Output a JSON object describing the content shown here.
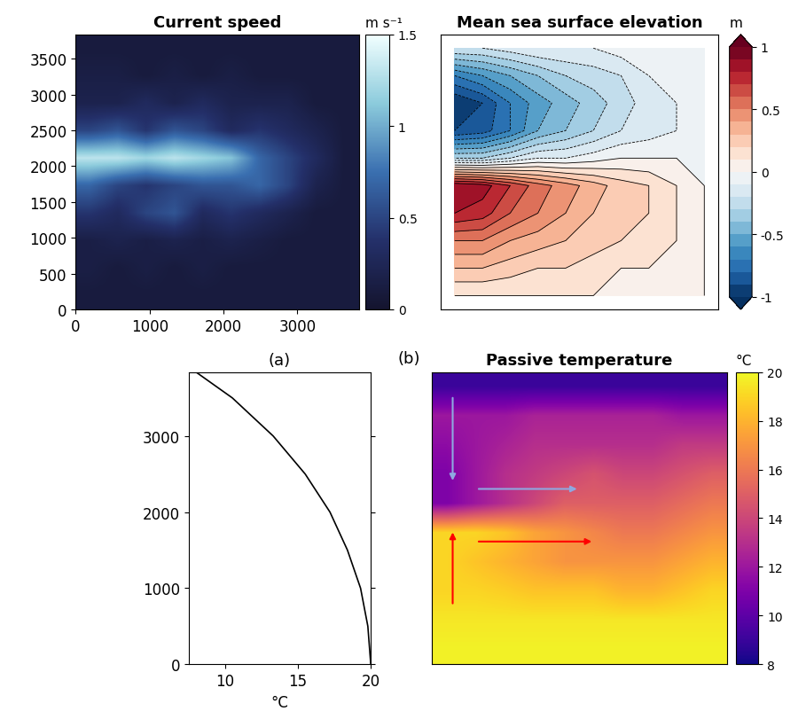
{
  "chart_data": [
    {
      "type": "heatmap",
      "title": "Current speed",
      "xlim": [
        0,
        3840
      ],
      "ylim": [
        0,
        3840
      ],
      "xticks": [
        0,
        1000,
        2000,
        3000
      ],
      "yticks": [
        0,
        500,
        1000,
        1500,
        2000,
        2500,
        3000,
        3500
      ],
      "colorbar_label": "m s⁻¹",
      "colorbar_range": [
        0,
        1.5
      ],
      "colorbar_ticks": [
        0,
        0.5,
        1,
        1.5
      ],
      "cells": [
        [
          0.1,
          0.1,
          0.1,
          0.1,
          0.1,
          0.1,
          0.1,
          0.1,
          0.1,
          0.1
        ],
        [
          0.15,
          0.1,
          0.15,
          0.1,
          0.15,
          0.1,
          0.1,
          0.1,
          0.1,
          0.1
        ],
        [
          0.15,
          0.2,
          0.15,
          0.2,
          0.15,
          0.2,
          0.15,
          0.1,
          0.1,
          0.1
        ],
        [
          0.4,
          0.3,
          0.5,
          0.6,
          0.3,
          0.4,
          0.3,
          0.2,
          0.1,
          0.1
        ],
        [
          0.7,
          0.5,
          0.4,
          0.5,
          0.6,
          0.6,
          0.7,
          0.5,
          0.2,
          0.1
        ],
        [
          1.3,
          1.3,
          1.2,
          1.3,
          1.2,
          1.1,
          0.7,
          0.5,
          0.3,
          0.1
        ],
        [
          0.5,
          0.6,
          0.4,
          0.6,
          0.5,
          0.3,
          0.4,
          0.3,
          0.2,
          0.1
        ],
        [
          0.2,
          0.2,
          0.3,
          0.2,
          0.3,
          0.2,
          0.2,
          0.2,
          0.1,
          0.1
        ],
        [
          0.15,
          0.15,
          0.1,
          0.15,
          0.1,
          0.15,
          0.1,
          0.1,
          0.1,
          0.1
        ],
        [
          0.1,
          0.1,
          0.1,
          0.1,
          0.1,
          0.1,
          0.1,
          0.1,
          0.1,
          0.1
        ]
      ]
    },
    {
      "type": "contour",
      "title": "Mean sea surface elevation",
      "xlim": [
        0,
        3840
      ],
      "ylim": [
        0,
        3840
      ],
      "tick_labels": false,
      "colorbar_label": "m",
      "colorbar_range": [
        -1,
        1
      ],
      "colorbar_ticks": [
        -1,
        -0.5,
        0,
        0.5,
        1
      ],
      "cells": [
        [
          0.1,
          0.1,
          0.1,
          0.1,
          0.1,
          0.1,
          0.1,
          0.05,
          0.05,
          0
        ],
        [
          0.3,
          0.3,
          0.25,
          0.2,
          0.2,
          0.15,
          0.1,
          0.1,
          0.05,
          0
        ],
        [
          0.5,
          0.5,
          0.4,
          0.35,
          0.3,
          0.25,
          0.2,
          0.15,
          0.1,
          0
        ],
        [
          0.8,
          0.75,
          0.6,
          0.5,
          0.4,
          0.3,
          0.25,
          0.2,
          0.1,
          0
        ],
        [
          0.9,
          0.85,
          0.7,
          0.55,
          0.45,
          0.35,
          0.25,
          0.2,
          0.1,
          0
        ],
        [
          -0.3,
          -0.3,
          -0.2,
          -0.1,
          -0.1,
          -0.05,
          0,
          0,
          0,
          0
        ],
        [
          -0.9,
          -0.85,
          -0.7,
          -0.5,
          -0.4,
          -0.3,
          -0.2,
          -0.15,
          -0.1,
          0
        ],
        [
          -1,
          -0.9,
          -0.7,
          -0.55,
          -0.45,
          -0.35,
          -0.25,
          -0.15,
          -0.1,
          0
        ],
        [
          -0.7,
          -0.6,
          -0.5,
          -0.4,
          -0.3,
          -0.25,
          -0.2,
          -0.1,
          -0.05,
          0
        ],
        [
          -0.2,
          -0.2,
          -0.15,
          -0.1,
          -0.1,
          -0.1,
          -0.05,
          -0.05,
          0,
          0
        ]
      ]
    },
    {
      "type": "line",
      "title": "(a)",
      "x_label": "°C",
      "x": [
        20,
        19.8,
        19.3,
        18.4,
        17.2,
        15.5,
        13.3,
        10.5,
        8
      ],
      "y": [
        0,
        500,
        1000,
        1500,
        2000,
        2500,
        3000,
        3500,
        3840
      ],
      "color": "#000000",
      "xlim": [
        7.5,
        20
      ],
      "ylim": [
        0,
        3840
      ],
      "xticks": [
        10,
        15,
        20
      ],
      "yticks": [
        0,
        1000,
        2000,
        3000
      ]
    },
    {
      "type": "heatmap",
      "title": "Passive temperature",
      "panel_label": "(b)",
      "xlim": [
        0,
        3840
      ],
      "ylim": [
        0,
        3840
      ],
      "tick_labels": false,
      "colorbar_label": "°C",
      "colorbar_range": [
        8,
        20
      ],
      "colorbar_ticks": [
        8,
        10,
        12,
        14,
        16,
        18,
        20
      ],
      "cells": [
        [
          19.8,
          19.8,
          19.8,
          19.8,
          19.8,
          19.8,
          19.8,
          19.8,
          19.8,
          19.8
        ],
        [
          19.5,
          19.5,
          19.5,
          19.5,
          19.5,
          19.5,
          19.5,
          19.5,
          19.5,
          19.5
        ],
        [
          19,
          19,
          18.8,
          18.5,
          18.5,
          18.5,
          18,
          18,
          18.5,
          19
        ],
        [
          19,
          18.5,
          18,
          17.5,
          17,
          17,
          17,
          17,
          17.5,
          18
        ],
        [
          19,
          19,
          18.5,
          17.5,
          17,
          16.5,
          16,
          16,
          16.5,
          17
        ],
        [
          11,
          12,
          13,
          14,
          15,
          15,
          15,
          15,
          15.5,
          16
        ],
        [
          11,
          12,
          13,
          13.5,
          14,
          14.5,
          14,
          14,
          14.5,
          15
        ],
        [
          11.5,
          12,
          12.5,
          13,
          13,
          13,
          13,
          13,
          13.5,
          13.5
        ],
        [
          12,
          12,
          12,
          12.5,
          12.5,
          12.5,
          12.5,
          12.5,
          12,
          12
        ],
        [
          9,
          9,
          9,
          9,
          9,
          9,
          9,
          9,
          9,
          9
        ]
      ]
    }
  ]
}
